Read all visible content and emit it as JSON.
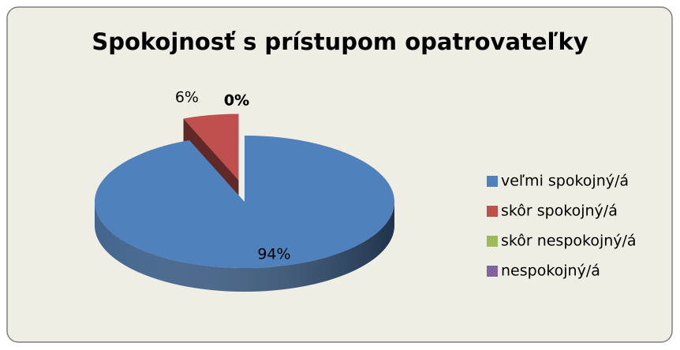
{
  "chart_data": {
    "type": "pie",
    "title": "Spokojnosť s prístupom opatrovateľky",
    "categories": [
      "veľmi spokojný/á",
      "skôr spokojný/á",
      "skôr nespokojný/á",
      "nespokojný/á"
    ],
    "values": [
      94,
      6,
      0,
      0
    ],
    "value_labels": [
      "94%",
      "6%",
      "0%",
      "0%"
    ],
    "colors": [
      "#4f81bd",
      "#c0504d",
      "#9bbb59",
      "#8064a2"
    ],
    "legend": "right"
  }
}
